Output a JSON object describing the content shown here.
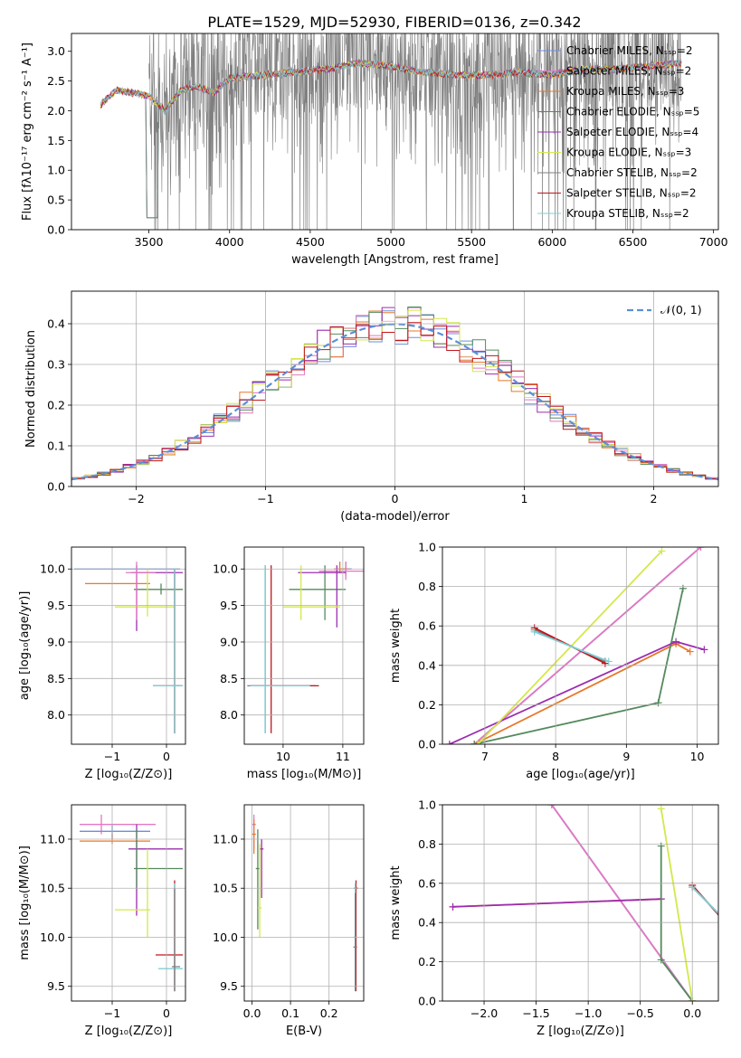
{
  "figure_title": "PLATE=1529, MJD=52930, FIBERID=0136, z=0.342",
  "colors": {
    "chabrier_miles": "#6d8fd9",
    "salpeter_miles": "#e377c2",
    "kroupa_miles": "#e8782a",
    "chabrier_elodie": "#548a5e",
    "salpeter_elodie": "#9b2db0",
    "kroupa_elodie": "#d4e84a",
    "chabrier_stelib": "#7f7f7f",
    "salpeter_stelib": "#c0161c",
    "kroupa_stelib": "#7fd0d6",
    "gaussian": "#5b8fd6",
    "grid": "#b0b0b0"
  },
  "chart_data": [
    {
      "id": "spectrum",
      "type": "line",
      "xlabel": "wavelength [Angstrom, rest frame]",
      "ylabel": "Flux [fλ10⁻¹⁷ erg cm⁻² s⁻¹ A⁻¹]",
      "xlim": [
        3020,
        7030
      ],
      "ylim": [
        0,
        3.3
      ],
      "xticks": [
        3500,
        4000,
        4500,
        5000,
        5500,
        6000,
        6500,
        7000
      ],
      "yticks": [
        0.0,
        0.5,
        1.0,
        1.5,
        2.0,
        2.5,
        3.0
      ],
      "grid": false,
      "legend_position": "top-right",
      "legend": [
        {
          "label": "Chabrier MILES, Nₛₛₚ=2",
          "color_key": "chabrier_miles"
        },
        {
          "label": "Salpeter MILES, Nₛₛₚ=2",
          "color_key": "salpeter_miles"
        },
        {
          "label": "Kroupa MILES, Nₛₛₚ=3",
          "color_key": "kroupa_miles"
        },
        {
          "label": "Chabrier ELODIE, Nₛₛₚ=5",
          "color_key": "chabrier_elodie"
        },
        {
          "label": "Salpeter ELODIE, Nₛₛₚ=4",
          "color_key": "salpeter_elodie"
        },
        {
          "label": "Kroupa ELODIE, Nₛₛₚ=3",
          "color_key": "kroupa_elodie"
        },
        {
          "label": "Chabrier STELIB, Nₛₛₚ=2",
          "color_key": "chabrier_stelib"
        },
        {
          "label": "Salpeter STELIB, Nₛₛₚ=2",
          "color_key": "salpeter_stelib"
        },
        {
          "label": "Kroupa STELIB, Nₛₛₚ=2",
          "color_key": "kroupa_stelib"
        }
      ],
      "model_continuum": [
        [
          3200,
          2.1
        ],
        [
          3300,
          2.35
        ],
        [
          3400,
          2.3
        ],
        [
          3500,
          2.25
        ],
        [
          3600,
          2.0
        ],
        [
          3700,
          2.35
        ],
        [
          3800,
          2.4
        ],
        [
          3900,
          2.3
        ],
        [
          4000,
          2.55
        ],
        [
          4200,
          2.6
        ],
        [
          4400,
          2.65
        ],
        [
          4600,
          2.7
        ],
        [
          4800,
          2.8
        ],
        [
          5000,
          2.75
        ],
        [
          5200,
          2.65
        ],
        [
          5400,
          2.6
        ],
        [
          5600,
          2.6
        ],
        [
          5800,
          2.65
        ],
        [
          6000,
          2.6
        ],
        [
          6200,
          2.7
        ],
        [
          6400,
          2.7
        ],
        [
          6600,
          2.75
        ],
        [
          6800,
          2.8
        ]
      ],
      "data_range": [
        3500,
        6800
      ]
    },
    {
      "id": "residuals",
      "type": "histogram",
      "xlabel": "(data-model)/error",
      "ylabel": "Normed distribution",
      "xlim": [
        -2.5,
        2.5
      ],
      "ylim": [
        0,
        0.48
      ],
      "xticks": [
        -2,
        -1,
        0,
        1,
        2
      ],
      "yticks": [
        0.0,
        0.1,
        0.2,
        0.3,
        0.4
      ],
      "grid": true,
      "legend_position": "top-right",
      "legend": [
        {
          "label": "𝒩(0, 1)",
          "color_key": "gaussian"
        }
      ],
      "bin_width": 0.1
    },
    {
      "id": "age_vs_Z",
      "type": "errorbar",
      "xlabel": "Z [log₁₀(Z/Z⊙)]",
      "ylabel": "age  [log₁₀(age/yr)]",
      "xlim": [
        -1.75,
        0.35
      ],
      "ylim": [
        7.6,
        10.3
      ],
      "xticks": [
        -1,
        0
      ],
      "yticks": [
        8.0,
        8.5,
        9.0,
        9.5,
        10.0
      ],
      "grid": true,
      "points": [
        {
          "c": "chabrier_miles",
          "x": -0.7,
          "xe": [
            -1.7,
            0.25
          ],
          "y": 10.0,
          "ye": [
            10.0,
            10.0
          ]
        },
        {
          "c": "kroupa_miles",
          "x": -1.05,
          "xe": [
            -1.5,
            -0.3
          ],
          "y": 9.8,
          "ye": [
            9.8,
            9.8
          ]
        },
        {
          "c": "chabrier_elodie",
          "x": -0.1,
          "xe": [
            -0.6,
            0.3
          ],
          "y": 9.72,
          "ye": [
            9.65,
            9.8
          ]
        },
        {
          "c": "salpeter_elodie",
          "x": -0.55,
          "xe": [
            -0.65,
            0.3
          ],
          "y": 9.95,
          "ye": [
            9.15,
            10.05
          ]
        },
        {
          "c": "kroupa_elodie",
          "x": -0.35,
          "xe": [
            -0.95,
            0.15
          ],
          "y": 9.48,
          "ye": [
            9.35,
            10.0
          ]
        },
        {
          "c": "salpeter_miles",
          "x": -0.55,
          "xe": [
            -0.75,
            -0.2
          ],
          "y": 9.95,
          "ye": [
            9.3,
            10.1
          ]
        },
        {
          "c": "chabrier_stelib",
          "x": 0.15,
          "xe": [
            0.1,
            0.25
          ],
          "y": 8.4,
          "ye": [
            7.75,
            10.0
          ]
        },
        {
          "c": "salpeter_stelib",
          "x": 0.15,
          "xe": [
            -0.25,
            0.3
          ],
          "y": 8.4,
          "ye": [
            7.75,
            10.0
          ]
        },
        {
          "c": "kroupa_stelib",
          "x": 0.15,
          "xe": [
            -0.25,
            0.3
          ],
          "y": 8.4,
          "ye": [
            7.75,
            10.0
          ]
        }
      ]
    },
    {
      "id": "age_vs_mass",
      "type": "errorbar",
      "xlabel": "mass [log₁₀(M/M⊙)]",
      "ylabel": "",
      "xlim": [
        9.35,
        11.35
      ],
      "ylim": [
        7.6,
        10.3
      ],
      "xticks": [
        10,
        11
      ],
      "yticks": [
        8.0,
        8.5,
        9.0,
        9.5,
        10.0
      ],
      "grid": true,
      "points": [
        {
          "c": "chabrier_miles",
          "x": 11.05,
          "xe": [
            10.95,
            11.15
          ],
          "y": 10.0,
          "ye": [
            9.9,
            10.1
          ]
        },
        {
          "c": "salpeter_miles",
          "x": 11.05,
          "xe": [
            10.6,
            11.35
          ],
          "y": 9.97,
          "ye": [
            9.85,
            10.1
          ]
        },
        {
          "c": "kroupa_miles",
          "x": 10.95,
          "xe": [
            10.85,
            11.1
          ],
          "y": 10.0,
          "ye": [
            9.95,
            10.1
          ]
        },
        {
          "c": "chabrier_elodie",
          "x": 10.7,
          "xe": [
            10.1,
            11.05
          ],
          "y": 9.72,
          "ye": [
            9.3,
            10.05
          ]
        },
        {
          "c": "salpeter_elodie",
          "x": 10.9,
          "xe": [
            10.25,
            11.05
          ],
          "y": 9.95,
          "ye": [
            9.2,
            10.05
          ]
        },
        {
          "c": "kroupa_elodie",
          "x": 10.3,
          "xe": [
            10.0,
            10.95
          ],
          "y": 9.48,
          "ye": [
            9.3,
            10.05
          ]
        },
        {
          "c": "chabrier_stelib",
          "x": 9.7,
          "xe": [
            9.4,
            10.55
          ],
          "y": 8.4,
          "ye": [
            7.75,
            10.05
          ]
        },
        {
          "c": "salpeter_stelib",
          "x": 9.8,
          "xe": [
            9.45,
            10.6
          ],
          "y": 8.4,
          "ye": [
            7.75,
            10.05
          ]
        },
        {
          "c": "kroupa_stelib",
          "x": 9.7,
          "xe": [
            9.45,
            10.45
          ],
          "y": 8.4,
          "ye": [
            7.75,
            10.05
          ]
        }
      ]
    },
    {
      "id": "weight_vs_age",
      "type": "line",
      "xlabel": "age  [log₁₀(age/yr)]",
      "ylabel": "mass weight",
      "xlim": [
        6.4,
        10.3
      ],
      "ylim": [
        0,
        1
      ],
      "xticks": [
        7,
        8,
        9,
        10
      ],
      "yticks": [
        0.0,
        0.2,
        0.4,
        0.6,
        0.8,
        1.0
      ],
      "grid": true,
      "series": [
        {
          "c": "chabrier_miles",
          "x": [
            6.85,
            10.05
          ],
          "y": [
            0.0,
            1.0
          ]
        },
        {
          "c": "salpeter_miles",
          "x": [
            6.85,
            10.05
          ],
          "y": [
            0.0,
            1.0
          ]
        },
        {
          "c": "kroupa_miles",
          "x": [
            6.85,
            9.7,
            9.9
          ],
          "y": [
            0.0,
            0.51,
            0.47
          ]
        },
        {
          "c": "chabrier_elodie",
          "x": [
            6.85,
            9.45,
            9.8
          ],
          "y": [
            0.0,
            0.21,
            0.79
          ]
        },
        {
          "c": "salpeter_elodie",
          "x": [
            6.5,
            9.7,
            10.1
          ],
          "y": [
            0.0,
            0.52,
            0.48
          ]
        },
        {
          "c": "kroupa_elodie",
          "x": [
            6.9,
            9.5
          ],
          "y": [
            0.0,
            0.98
          ]
        },
        {
          "c": "chabrier_stelib",
          "x": [
            7.7,
            8.7
          ],
          "y": [
            0.58,
            0.42
          ]
        },
        {
          "c": "salpeter_stelib",
          "x": [
            7.7,
            8.7
          ],
          "y": [
            0.59,
            0.41
          ]
        },
        {
          "c": "kroupa_stelib",
          "x": [
            7.7,
            8.75
          ],
          "y": [
            0.57,
            0.42
          ]
        }
      ]
    },
    {
      "id": "mass_vs_Z",
      "type": "errorbar",
      "xlabel": "Z [log₁₀(Z/Z⊙)]",
      "ylabel": "mass [log₁₀(M/M⊙)]",
      "xlim": [
        -1.75,
        0.35
      ],
      "ylim": [
        9.35,
        11.35
      ],
      "xticks": [
        -1,
        0
      ],
      "yticks": [
        9.5,
        10.0,
        10.5,
        11.0
      ],
      "grid": true,
      "points": [
        {
          "c": "salpeter_miles",
          "x": -1.2,
          "xe": [
            -1.6,
            -0.2
          ],
          "y": 11.15,
          "ye": [
            11.05,
            11.25
          ]
        },
        {
          "c": "chabrier_miles",
          "x": -1.0,
          "xe": [
            -1.6,
            -0.3
          ],
          "y": 11.08,
          "ye": [
            11.0,
            11.15
          ]
        },
        {
          "c": "kroupa_miles",
          "x": -1.0,
          "xe": [
            -1.6,
            -0.3
          ],
          "y": 10.98,
          "ye": [
            10.95,
            11.05
          ]
        },
        {
          "c": "salpeter_elodie",
          "x": -0.55,
          "xe": [
            -0.7,
            0.3
          ],
          "y": 10.9,
          "ye": [
            10.22,
            11.15
          ]
        },
        {
          "c": "chabrier_elodie",
          "x": -0.55,
          "xe": [
            -0.6,
            0.3
          ],
          "y": 10.7,
          "ye": [
            10.5,
            11.1
          ]
        },
        {
          "c": "kroupa_elodie",
          "x": -0.35,
          "xe": [
            -0.95,
            -0.3
          ],
          "y": 10.28,
          "ye": [
            10.0,
            10.9
          ]
        },
        {
          "c": "salpeter_stelib",
          "x": 0.15,
          "xe": [
            -0.2,
            0.3
          ],
          "y": 9.82,
          "ye": [
            9.45,
            10.58
          ]
        },
        {
          "c": "kroupa_stelib",
          "x": 0.15,
          "xe": [
            -0.15,
            0.3
          ],
          "y": 9.68,
          "ye": [
            9.45,
            10.55
          ]
        },
        {
          "c": "chabrier_stelib",
          "x": 0.15,
          "xe": [
            0.1,
            0.25
          ],
          "y": 9.7,
          "ye": [
            9.45,
            10.5
          ]
        }
      ]
    },
    {
      "id": "mass_vs_ebv",
      "type": "errorbar",
      "xlabel": "E(B-V)",
      "ylabel": "",
      "xlim": [
        -0.02,
        0.29
      ],
      "ylim": [
        9.35,
        11.35
      ],
      "xticks": [
        0.0,
        0.1,
        0.2
      ],
      "yticks": [
        9.5,
        10.0,
        10.5,
        11.0
      ],
      "grid": true,
      "points": [
        {
          "c": "salpeter_miles",
          "x": 0.005,
          "xe": [
            0.0,
            0.01
          ],
          "y": 11.15,
          "ye": [
            10.9,
            11.25
          ]
        },
        {
          "c": "kroupa_miles",
          "x": 0.005,
          "xe": [
            0.0,
            0.01
          ],
          "y": 11.05,
          "ye": [
            10.85,
            11.2
          ]
        },
        {
          "c": "chabrier_elodie",
          "x": 0.015,
          "xe": [
            0.01,
            0.02
          ],
          "y": 10.7,
          "ye": [
            10.08,
            11.1
          ]
        },
        {
          "c": "salpeter_elodie",
          "x": 0.025,
          "xe": [
            0.02,
            0.03
          ],
          "y": 10.9,
          "ye": [
            10.4,
            11.0
          ]
        },
        {
          "c": "kroupa_elodie",
          "x": 0.02,
          "xe": [
            0.015,
            0.025
          ],
          "y": 10.3,
          "ye": [
            10.0,
            10.95
          ]
        },
        {
          "c": "salpeter_stelib",
          "x": 0.27,
          "xe": [
            0.265,
            0.275
          ],
          "y": 10.5,
          "ye": [
            9.45,
            10.58
          ]
        },
        {
          "c": "kroupa_stelib",
          "x": 0.268,
          "xe": [
            0.263,
            0.273
          ],
          "y": 10.0,
          "ye": [
            9.45,
            10.55
          ]
        },
        {
          "c": "chabrier_stelib",
          "x": 0.268,
          "xe": [
            0.263,
            0.273
          ],
          "y": 9.9,
          "ye": [
            9.45,
            10.45
          ]
        }
      ]
    },
    {
      "id": "weight_vs_Z",
      "type": "line",
      "xlabel": "Z [log₁₀(Z/Z⊙)]",
      "ylabel": "mass weight",
      "xlim": [
        -2.4,
        0.25
      ],
      "ylim": [
        0,
        1
      ],
      "xticks": [
        -2.0,
        -1.5,
        -1.0,
        -0.5,
        0.0
      ],
      "yticks": [
        0.0,
        0.2,
        0.4,
        0.6,
        0.8,
        1.0
      ],
      "grid": true,
      "series": [
        {
          "c": "chabrier_miles",
          "x": [
            -1.35,
            0.0
          ],
          "y": [
            1.0,
            0.0
          ]
        },
        {
          "c": "salpeter_miles",
          "x": [
            -1.35,
            0.0
          ],
          "y": [
            1.0,
            0.0
          ]
        },
        {
          "c": "kroupa_miles",
          "x": [
            -2.3,
            -0.3
          ],
          "y": [
            0.48,
            0.52
          ]
        },
        {
          "c": "salpeter_elodie",
          "x": [
            -2.3,
            -0.3
          ],
          "y": [
            0.48,
            0.52
          ]
        },
        {
          "c": "chabrier_elodie",
          "x": [
            -0.3,
            -0.3,
            0.0
          ],
          "y": [
            0.79,
            0.21,
            0.0
          ]
        },
        {
          "c": "kroupa_elodie",
          "x": [
            -0.3,
            0.0
          ],
          "y": [
            0.98,
            0.0
          ]
        },
        {
          "c": "chabrier_stelib",
          "x": [
            0.0,
            0.3
          ],
          "y": [
            0.58,
            0.42
          ]
        },
        {
          "c": "salpeter_stelib",
          "x": [
            0.0,
            0.3
          ],
          "y": [
            0.59,
            0.41
          ]
        },
        {
          "c": "kroupa_stelib",
          "x": [
            0.0,
            0.3
          ],
          "y": [
            0.58,
            0.42
          ]
        }
      ]
    }
  ]
}
